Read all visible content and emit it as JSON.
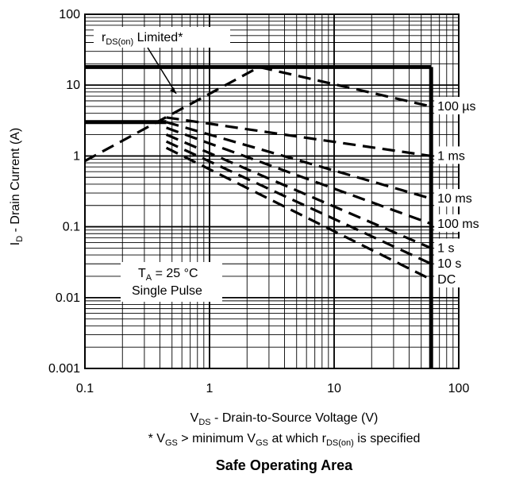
{
  "chart_data": {
    "type": "line",
    "title": "Safe Operating Area",
    "xlabel": {
      "main": "V",
      "sub": "DS",
      "rest": " - Drain-to-Source Voltage (V)"
    },
    "ylabel": {
      "main": "I",
      "sub": "D",
      "rest": " - Drain Current (A)"
    },
    "footnote": {
      "p1": "* V",
      "s1": "GS",
      "p2": " > minimum V",
      "s2": "GS",
      "p3": " at which r",
      "s3": "DS(on)",
      "p4": " is specified"
    },
    "xscale": "log",
    "yscale": "log",
    "xlim": [
      0.1,
      100
    ],
    "ylim": [
      0.001,
      100
    ],
    "xticks": [
      0.1,
      1,
      10,
      100
    ],
    "xtick_labels": [
      "0.1",
      "1",
      "10",
      "100"
    ],
    "yticks": [
      0.001,
      0.01,
      0.1,
      1,
      10,
      100
    ],
    "ytick_labels": [
      "0.001",
      "0.01",
      "0.1",
      "1",
      "10",
      "100"
    ],
    "grid": true,
    "limit_annotation": {
      "main": "r",
      "sub": "DS(on)",
      "rest": " Limited*"
    },
    "condition_annotation": {
      "line1_main": "T",
      "line1_sub": "A",
      "line1_rest": " = 25 °C",
      "line2": "Single Pulse"
    },
    "boundary": {
      "current_limit": {
        "x": [
          0.1,
          60
        ],
        "y": [
          18,
          18
        ]
      },
      "voltage_limit": {
        "x": [
          60,
          60
        ],
        "y": [
          18,
          0.001
        ]
      },
      "low_current_limit": {
        "x": [
          0.1,
          0.45
        ],
        "y": [
          3,
          3
        ]
      }
    },
    "series": [
      {
        "name": "100 µs",
        "x": [
          0.1,
          2.5,
          60
        ],
        "y": [
          0.85,
          18,
          5
        ]
      },
      {
        "name": "1 ms",
        "x": [
          0.45,
          60
        ],
        "y": [
          3.5,
          1.0
        ]
      },
      {
        "name": "10 ms",
        "x": [
          0.45,
          60
        ],
        "y": [
          3.0,
          0.25
        ]
      },
      {
        "name": "100 ms",
        "x": [
          0.45,
          60
        ],
        "y": [
          2.5,
          0.11
        ]
      },
      {
        "name": "1 s",
        "x": [
          0.45,
          60
        ],
        "y": [
          2.0,
          0.05
        ]
      },
      {
        "name": "10 s",
        "x": [
          0.45,
          60
        ],
        "y": [
          1.6,
          0.03
        ]
      },
      {
        "name": "DC",
        "x": [
          0.45,
          60
        ],
        "y": [
          1.3,
          0.018
        ]
      }
    ],
    "rdson_line": {
      "x": [
        0.1,
        1.0
      ],
      "y": [
        0.85,
        8
      ]
    }
  }
}
